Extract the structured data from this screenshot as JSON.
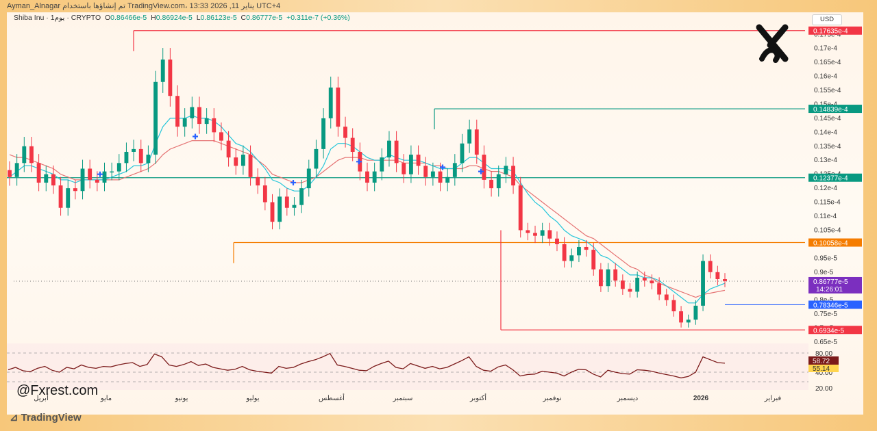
{
  "header": {
    "top_text": "Ayman_Alnagar تم إنشاؤها باستخدام TradingView.com، يناير 11, 2026 13:33 UTC+4",
    "symbol": "Shiba Inu · 1يوم · CRYPTO",
    "ohlc": {
      "o_label": "O",
      "o": "0.86466e-5",
      "h_label": "H",
      "h": "0.86924e-5",
      "l_label": "L",
      "l": "0.86123e-5",
      "c_label": "C",
      "c": "0.86777e-5",
      "change": "+0.311e-7 (+0.36%)"
    }
  },
  "currency": "USD",
  "watermark": "@Fxrest.com",
  "brand": "TradingView",
  "colors": {
    "up": "#089981",
    "down": "#f23645",
    "ema_fast": "#26c6da",
    "ema_slow": "#e57373",
    "rsi": "#7b1a1a",
    "red_level": "#f23645",
    "green_level": "#089981",
    "orange_level": "#f57c00",
    "blue_level": "#2962ff",
    "current": "#7b2fbf"
  },
  "chart_data": {
    "type": "candlestick",
    "title": "",
    "x_axis_labels": [
      "أبريل",
      "مايو",
      "يونيو",
      "يوليو",
      "أغسطس",
      "سبتمبر",
      "أكتوبر",
      "نوفمبر",
      "ديسمبر",
      "2026",
      "فبراير"
    ],
    "y_tick_labels": [
      "0.175e-4",
      "0.17e-4",
      "0.165e-4",
      "0.16e-4",
      "0.155e-4",
      "0.15e-4",
      "0.145e-4",
      "0.14e-4",
      "0.135e-4",
      "0.13e-4",
      "0.125e-4",
      "0.12e-4",
      "0.115e-4",
      "0.11e-4",
      "0.105e-4",
      "0.1e-4",
      "0.95e-5",
      "0.9e-5",
      "0.85e-5",
      "0.8e-5",
      "0.75e-5",
      "0.7e-5",
      "0.65e-5"
    ],
    "ylim": [
      6.5e-06,
      1.78e-05
    ],
    "price_levels": [
      {
        "label": "0.17635e-4",
        "value": 1.7635e-05,
        "color": "red"
      },
      {
        "label": "0.14839e-4",
        "value": 1.4839e-05,
        "color": "green"
      },
      {
        "label": "0.12377e-4",
        "value": 1.2377e-05,
        "color": "green"
      },
      {
        "label": "0.10058e-4",
        "value": 1.0058e-05,
        "color": "orange"
      },
      {
        "label": "0.78346e-5",
        "value": 7.8346e-06,
        "color": "blue"
      },
      {
        "label": "0.6934e-5",
        "value": 6.934e-06,
        "color": "red"
      }
    ],
    "current_price": {
      "label": "0.86777e-5",
      "value": 8.6777e-06,
      "countdown": "14:26:01"
    },
    "close_series": [
      12.4,
      12.9,
      13.5,
      12.9,
      12.2,
      12.5,
      12.1,
      11.3,
      12.0,
      11.9,
      12.7,
      12.3,
      12.2,
      12.6,
      12.6,
      12.9,
      13.3,
      13.4,
      12.9,
      13.2,
      15.8,
      16.6,
      15.3,
      14.2,
      14.5,
      14.9,
      14.3,
      14.5,
      14.0,
      13.7,
      13.1,
      12.8,
      13.2,
      12.4,
      12.1,
      11.5,
      10.8,
      11.7,
      11.3,
      11.4,
      12.0,
      12.7,
      13.4,
      14.5,
      15.6,
      14.2,
      13.8,
      13.3,
      12.6,
      12.2,
      12.6,
      13.1,
      13.7,
      12.9,
      12.5,
      13.2,
      12.8,
      12.4,
      12.6,
      12.2,
      12.4,
      12.9,
      13.6,
      14.1,
      13.2,
      12.3,
      12.0,
      12.5,
      12.8,
      12.1,
      10.5,
      10.4,
      10.3,
      10.5,
      10.2,
      10.0,
      9.4,
      9.6,
      9.9,
      9.8,
      9.1,
      8.5,
      9.1,
      8.7,
      8.4,
      8.3,
      8.8,
      8.7,
      8.6,
      8.2,
      8.0,
      7.6,
      7.2,
      7.3,
      7.8,
      9.4,
      9.0,
      8.75,
      8.68
    ],
    "ema_fast": [
      12.4,
      12.6,
      12.8,
      12.8,
      12.7,
      12.6,
      12.5,
      12.3,
      12.3,
      12.2,
      12.3,
      12.3,
      12.3,
      12.3,
      12.4,
      12.5,
      12.6,
      12.8,
      12.8,
      12.9,
      13.6,
      14.2,
      14.5,
      14.5,
      14.5,
      14.6,
      14.5,
      14.5,
      14.4,
      14.2,
      13.9,
      13.6,
      13.5,
      13.3,
      13.0,
      12.7,
      12.3,
      12.2,
      12.0,
      11.9,
      11.9,
      12.1,
      12.4,
      12.8,
      13.4,
      13.6,
      13.6,
      13.5,
      13.3,
      13.1,
      13.0,
      13.0,
      13.2,
      13.1,
      13.0,
      13.0,
      13.0,
      12.9,
      12.8,
      12.7,
      12.7,
      12.7,
      12.9,
      13.1,
      13.1,
      12.9,
      12.7,
      12.7,
      12.7,
      12.6,
      12.2,
      11.8,
      11.5,
      11.3,
      11.0,
      10.8,
      10.5,
      10.3,
      10.2,
      10.1,
      9.9,
      9.6,
      9.5,
      9.3,
      9.1,
      8.9,
      8.9,
      8.8,
      8.8,
      8.7,
      8.5,
      8.3,
      8.1,
      7.9,
      7.9,
      8.2,
      8.4,
      8.5,
      8.6
    ],
    "ema_slow": [
      13.2,
      13.1,
      13.1,
      13.0,
      12.9,
      12.8,
      12.7,
      12.5,
      12.4,
      12.3,
      12.3,
      12.3,
      12.3,
      12.3,
      12.3,
      12.3,
      12.4,
      12.5,
      12.6,
      12.7,
      12.9,
      13.2,
      13.4,
      13.5,
      13.6,
      13.7,
      13.7,
      13.7,
      13.7,
      13.6,
      13.5,
      13.4,
      13.3,
      13.2,
      13.0,
      12.8,
      12.5,
      12.4,
      12.3,
      12.2,
      12.2,
      12.3,
      12.4,
      12.6,
      12.8,
      13.0,
      13.1,
      13.1,
      13.1,
      13.0,
      13.0,
      13.0,
      13.0,
      13.0,
      12.9,
      12.9,
      12.9,
      12.9,
      12.8,
      12.8,
      12.7,
      12.7,
      12.7,
      12.8,
      12.8,
      12.7,
      12.6,
      12.6,
      12.5,
      12.4,
      12.1,
      11.9,
      11.7,
      11.5,
      11.3,
      11.1,
      10.9,
      10.7,
      10.5,
      10.3,
      10.2,
      10.0,
      9.8,
      9.6,
      9.4,
      9.2,
      9.1,
      8.9,
      8.8,
      8.6,
      8.5,
      8.4,
      8.3,
      8.2,
      8.1,
      8.2,
      8.25,
      8.3,
      8.35
    ],
    "rsi": {
      "current_label": "58.72",
      "ma_label": "55.14",
      "levels": [
        "80.00",
        "40.00",
        "20.00"
      ],
      "values": [
        45,
        50,
        43,
        41,
        48,
        52,
        44,
        40,
        50,
        47,
        55,
        50,
        48,
        52,
        51,
        55,
        58,
        60,
        52,
        56,
        78,
        72,
        55,
        52,
        56,
        62,
        54,
        57,
        50,
        47,
        44,
        46,
        52,
        45,
        42,
        40,
        38,
        52,
        48,
        50,
        57,
        62,
        66,
        72,
        79,
        55,
        52,
        48,
        44,
        43,
        52,
        58,
        63,
        50,
        47,
        58,
        53,
        48,
        52,
        47,
        50,
        57,
        64,
        72,
        52,
        44,
        42,
        51,
        55,
        45,
        32,
        35,
        36,
        42,
        40,
        38,
        32,
        40,
        46,
        45,
        36,
        30,
        44,
        40,
        37,
        36,
        45,
        44,
        42,
        38,
        35,
        32,
        28,
        31,
        40,
        72,
        66,
        60,
        58.7
      ]
    }
  }
}
